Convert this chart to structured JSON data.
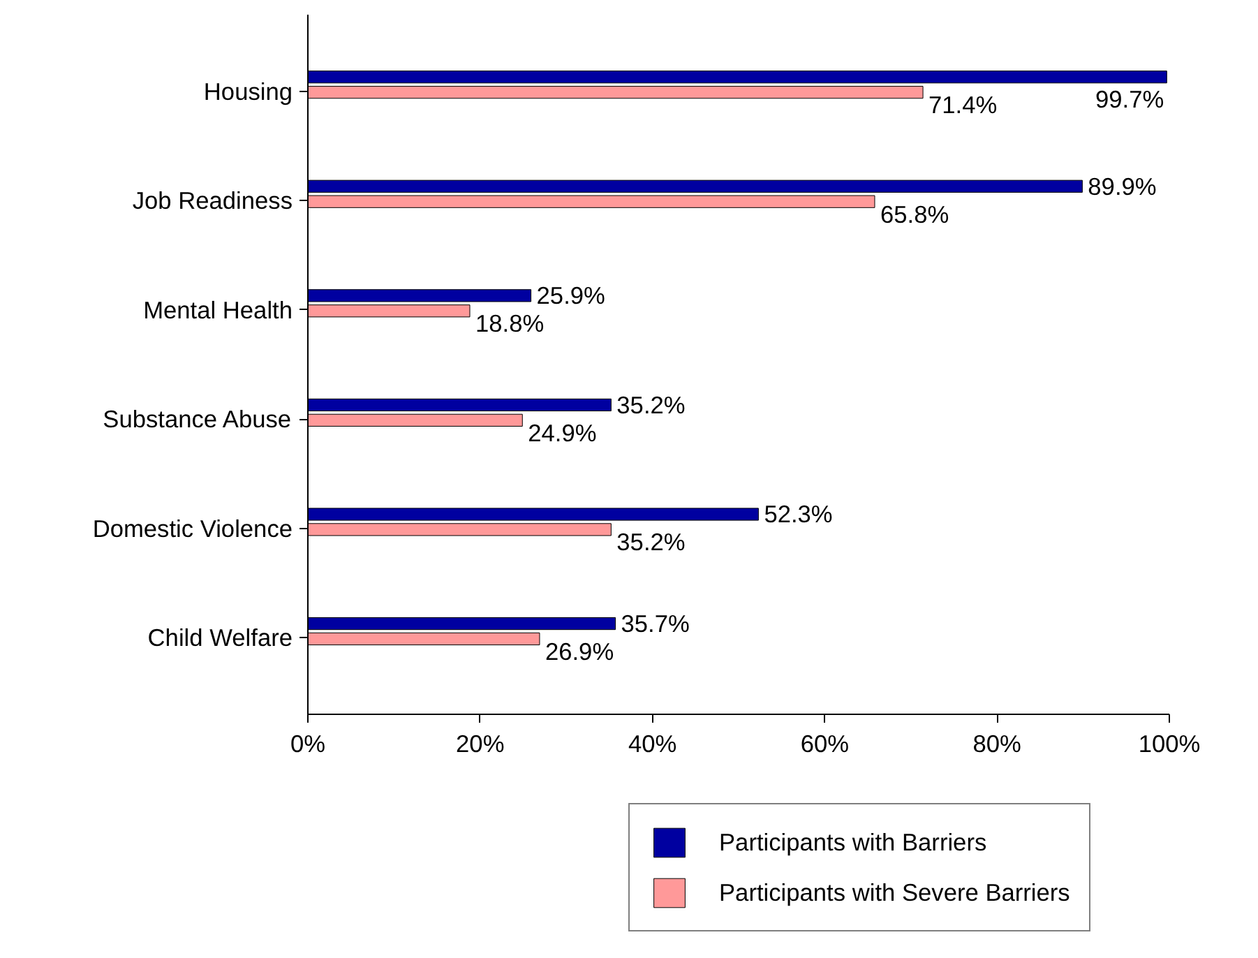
{
  "chart_data": {
    "type": "bar",
    "orientation": "horizontal",
    "categories": [
      "Housing",
      "Job Readiness",
      "Mental Health",
      "Substance Abuse",
      "Domestic Violence",
      "Child Welfare"
    ],
    "series": [
      {
        "name": "Participants with Barriers",
        "color": "#0000a0",
        "values": [
          99.7,
          89.9,
          25.9,
          35.2,
          52.3,
          35.7
        ],
        "value_labels": [
          "99.7%",
          "89.9%",
          "25.9%",
          "35.2%",
          "52.3%",
          "35.7%"
        ]
      },
      {
        "name": "Participants with Severe Barriers",
        "color": "#ff9999",
        "values": [
          71.4,
          65.8,
          18.8,
          24.9,
          35.2,
          26.9
        ],
        "value_labels": [
          "71.4%",
          "65.8%",
          "18.8%",
          "24.9%",
          "35.2%",
          "26.9%"
        ]
      }
    ],
    "xlim": [
      0,
      100
    ],
    "xticks": [
      {
        "value": 0,
        "label": "0%"
      },
      {
        "value": 20,
        "label": "20%"
      },
      {
        "value": 40,
        "label": "40%"
      },
      {
        "value": 60,
        "label": "60%"
      },
      {
        "value": 80,
        "label": "80%"
      },
      {
        "value": 100,
        "label": "100%"
      }
    ],
    "legend": "bottom"
  }
}
